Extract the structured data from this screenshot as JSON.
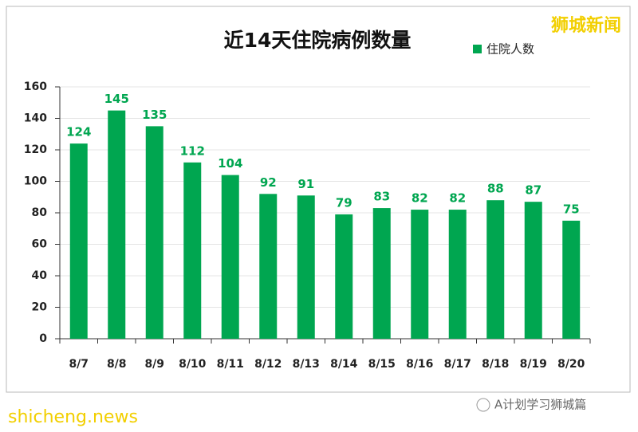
{
  "chart_data": {
    "type": "bar",
    "title": "近14天住院病例数量",
    "categories": [
      "8/7",
      "8/8",
      "8/9",
      "8/10",
      "8/11",
      "8/12",
      "8/13",
      "8/14",
      "8/15",
      "8/16",
      "8/17",
      "8/18",
      "8/19",
      "8/20"
    ],
    "series": [
      {
        "name": "住院人数",
        "color": "#00a650",
        "values": [
          124,
          145,
          135,
          112,
          104,
          92,
          91,
          79,
          83,
          82,
          82,
          88,
          87,
          75
        ]
      }
    ],
    "ylim": [
      0,
      160
    ],
    "yticks": [
      0,
      20,
      40,
      60,
      80,
      100,
      120,
      140,
      160
    ],
    "grid": true,
    "legend": "top-right"
  },
  "watermarks": {
    "brand": "狮城新闻",
    "site": "shicheng.news",
    "account": "A计划学习狮城篇"
  }
}
